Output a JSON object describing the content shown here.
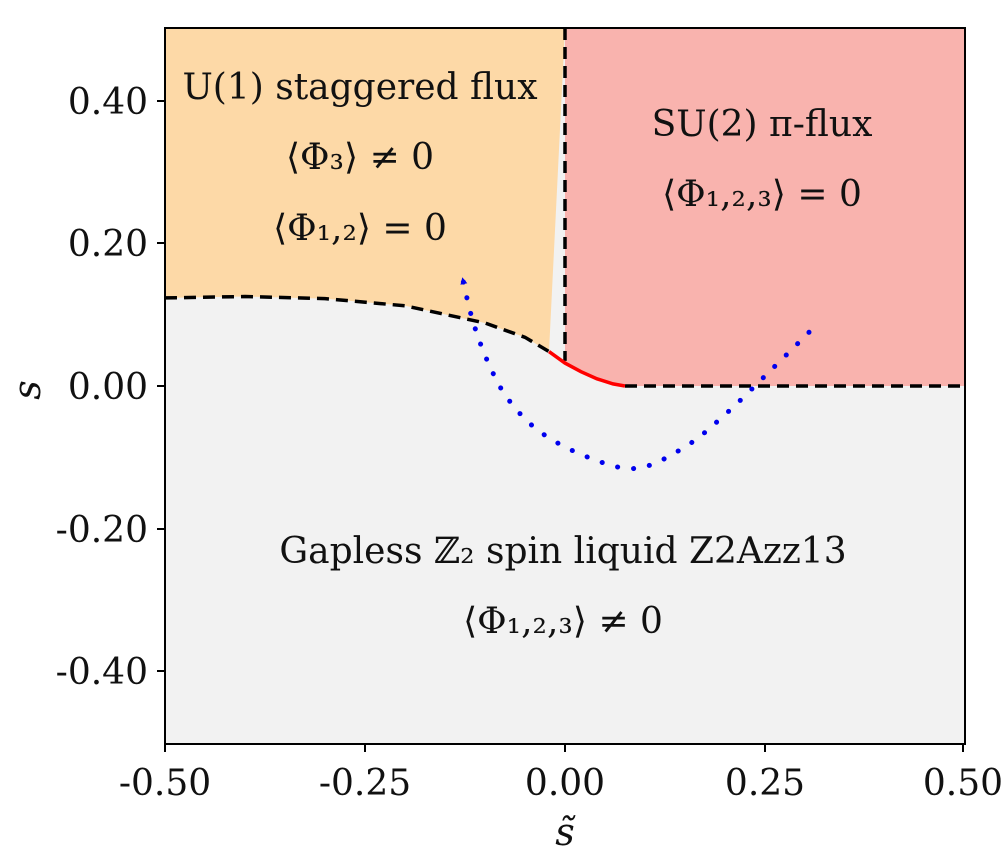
{
  "chart_data": {
    "type": "phase-diagram",
    "title": "",
    "xlabel": "s̃",
    "ylabel": "s",
    "xlim": [
      -0.5,
      0.5
    ],
    "ylim": [
      -0.5,
      0.5
    ],
    "xticks": [
      -0.5,
      -0.25,
      0.0,
      0.25,
      0.5
    ],
    "xtick_labels": [
      "-0.50",
      "-0.25",
      "0.00",
      "0.25",
      "0.50"
    ],
    "yticks": [
      0.4,
      0.2,
      0.0,
      -0.2,
      -0.4
    ],
    "ytick_labels": [
      "0.40",
      "0.20",
      "0.00",
      "-0.20",
      "-0.40"
    ],
    "colors": {
      "u1": "#fdd9a7",
      "su2": "#f9b3ae",
      "z2": "#f2f2f2",
      "boundary": "#000000",
      "first_order": "#ff0000",
      "path": "#0000ee"
    },
    "regions": [
      {
        "key": "u1",
        "lines": [
          "U(1) staggered flux",
          "⟨Φ₃⟩ ≠ 0",
          "⟨Φ₁,₂⟩ = 0"
        ],
        "label_at": [
          -0.26,
          0.395
        ]
      },
      {
        "key": "su2",
        "lines": [
          "SU(2) π-flux",
          "⟨Φ₁,₂,₃⟩ = 0"
        ],
        "label_at": [
          0.245,
          0.37
        ]
      },
      {
        "key": "z2",
        "lines": [
          "Gapless ℤ₂ spin liquid Z2Azz13",
          "⟨Φ₁,₂,₃⟩ ≠ 0"
        ],
        "label_at": [
          0.21,
          -0.25
        ]
      }
    ],
    "boundaries": {
      "u1_z2": [
        [
          -0.5,
          0.123
        ],
        [
          -0.4,
          0.125
        ],
        [
          -0.3,
          0.122
        ],
        [
          -0.2,
          0.112
        ],
        [
          -0.1,
          0.088
        ],
        [
          -0.05,
          0.068
        ],
        [
          -0.02,
          0.048
        ]
      ],
      "u1_su2": [
        [
          0.0,
          0.5
        ],
        [
          0.0,
          0.035
        ]
      ],
      "su2_z2": [
        [
          0.075,
          0.0
        ],
        [
          0.5,
          0.0
        ]
      ],
      "first_order": [
        [
          -0.02,
          0.048
        ],
        [
          0.0,
          0.032
        ],
        [
          0.02,
          0.02
        ],
        [
          0.04,
          0.01
        ],
        [
          0.06,
          0.003
        ],
        [
          0.075,
          0.0
        ]
      ]
    },
    "path": {
      "points": [
        [
          0.305,
          0.075
        ],
        [
          0.26,
          0.025
        ],
        [
          0.2,
          -0.04
        ],
        [
          0.15,
          -0.085
        ],
        [
          0.09,
          -0.115
        ],
        [
          0.03,
          -0.1
        ],
        [
          -0.03,
          -0.065
        ],
        [
          -0.07,
          -0.02
        ],
        [
          -0.095,
          0.03
        ],
        [
          -0.115,
          0.09
        ],
        [
          -0.128,
          0.15
        ]
      ]
    }
  }
}
